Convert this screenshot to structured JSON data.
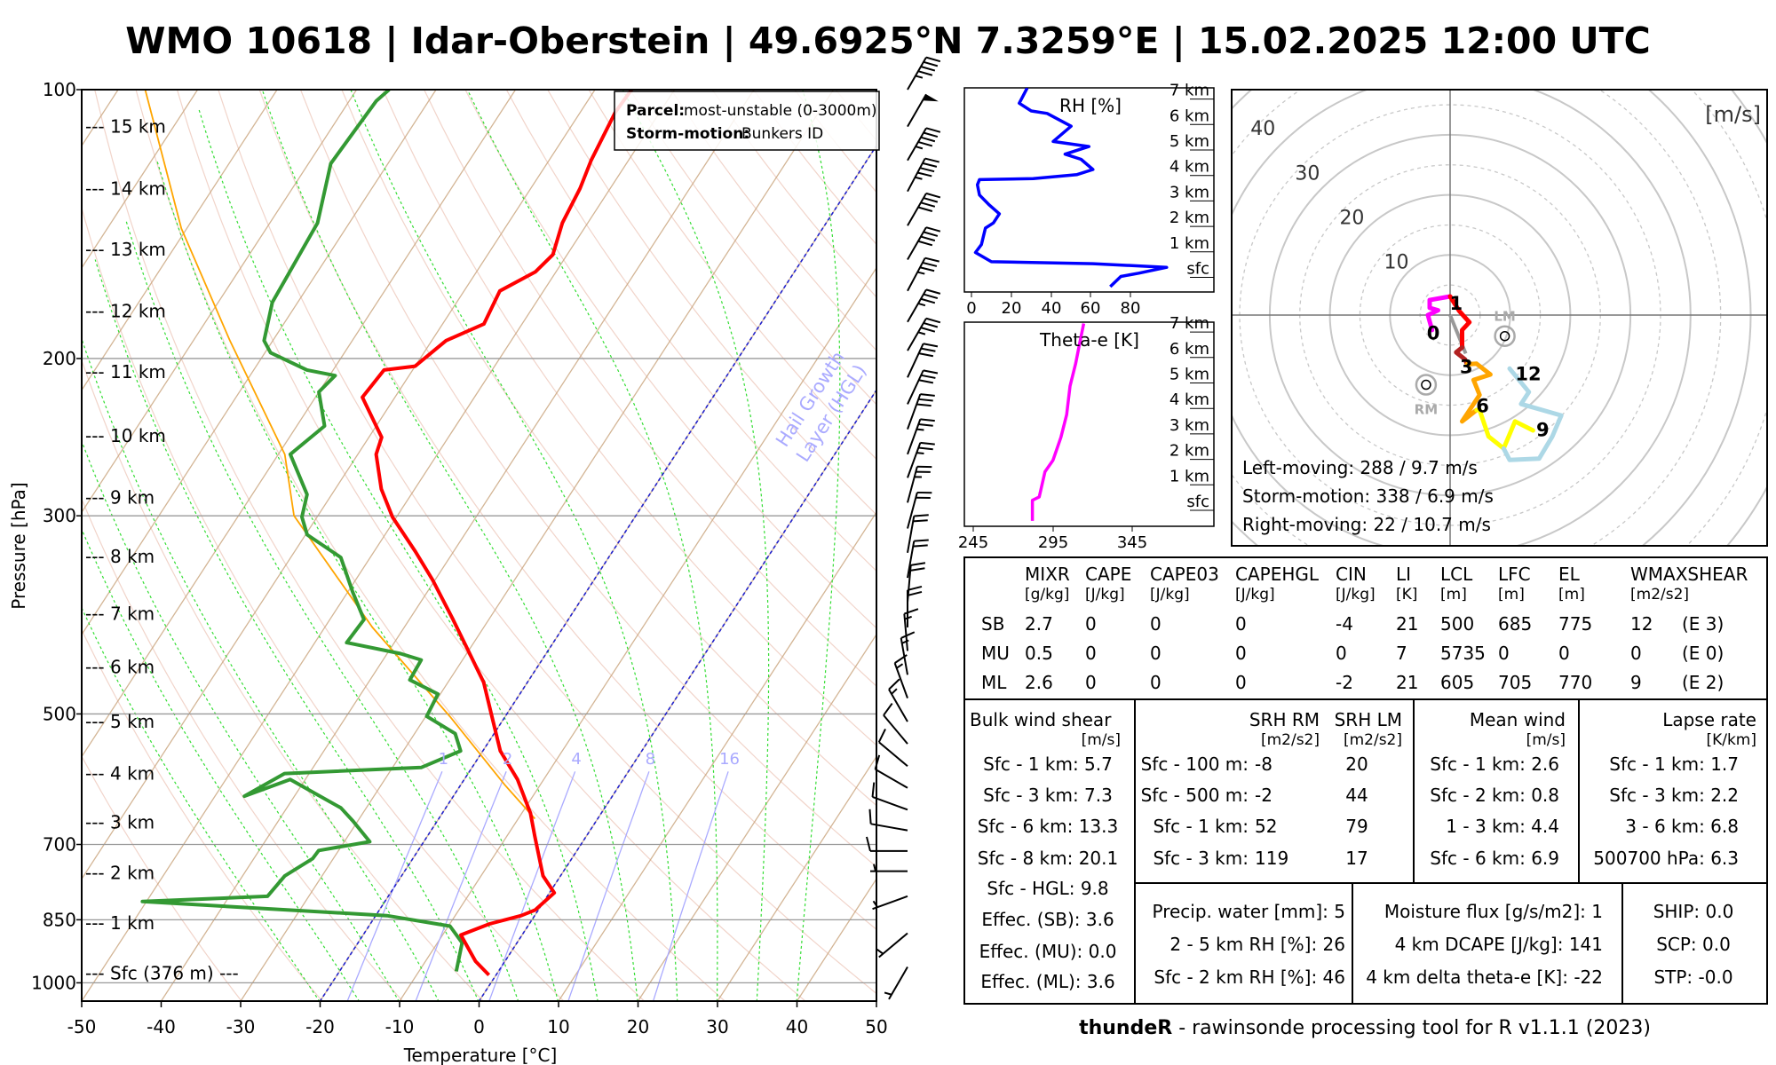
{
  "title": "WMO 10618 | Idar-Oberstein | 49.6925°N 7.3259°E | 15.02.2025 12:00 UTC",
  "colors": {
    "temperature": "#ff0000",
    "dewpoint": "#339933",
    "parcel": "#ffa500",
    "hgl": "#2222cc",
    "rh": "#0000ff",
    "theta_e": "#ff00ff",
    "isotherm": "#c8a27a",
    "dry_adiabat": "#e7b7a6",
    "moist_adiabat": "#33dd33",
    "mixing_ratio": "#aaaaff"
  },
  "skewt_legend": {
    "parcel_label": "Parcel:",
    "parcel_value": "most-unstable (0-3000m)",
    "storm_label": "Storm-motion:",
    "storm_value": "Bunkers ID"
  },
  "chart_data": [
    {
      "type": "line",
      "name": "skew-t",
      "xlabel": "Temperature [°C]",
      "ylabel": "Pressure [hPa]",
      "xlim": [
        -50,
        50
      ],
      "ylim": [
        1048,
        100
      ],
      "x_ticks": [
        "-50",
        "-40",
        "-30",
        "-20",
        "-10",
        "0",
        "10",
        "20",
        "30",
        "40",
        "50"
      ],
      "y_ticks": [
        {
          "p": 100,
          "label": "100"
        },
        {
          "p": 200,
          "label": "200"
        },
        {
          "p": 300,
          "label": "300"
        },
        {
          "p": 500,
          "label": "500"
        },
        {
          "p": 700,
          "label": "700"
        },
        {
          "p": 850,
          "label": "850"
        },
        {
          "p": 1000,
          "label": "1000"
        }
      ],
      "height_labels": [
        {
          "p": 110,
          "label": "--- 15 km"
        },
        {
          "p": 129,
          "label": "--- 14 km"
        },
        {
          "p": 151,
          "label": "--- 13 km"
        },
        {
          "p": 177,
          "label": "--- 12 km"
        },
        {
          "p": 207,
          "label": "--- 11 km"
        },
        {
          "p": 244,
          "label": "--- 10 km"
        },
        {
          "p": 286,
          "label": "--- 9 km"
        },
        {
          "p": 333,
          "label": "--- 8 km"
        },
        {
          "p": 386,
          "label": "--- 7 km"
        },
        {
          "p": 443,
          "label": "--- 6 km"
        },
        {
          "p": 510,
          "label": "--- 5 km"
        },
        {
          "p": 583,
          "label": "--- 4 km"
        },
        {
          "p": 661,
          "label": "--- 3 km"
        },
        {
          "p": 753,
          "label": "--- 2 km"
        },
        {
          "p": 857,
          "label": "--- 1 km"
        },
        {
          "p": 975,
          "label": "--- Sfc (376 m) ---"
        }
      ],
      "mixing_ratio_labels": [
        "1",
        "2",
        "4",
        "8",
        "16"
      ],
      "mixing_ratio_values": [
        1,
        2,
        4,
        8,
        16
      ],
      "hgl_isotherms": [
        0,
        -20
      ],
      "hgl_label": [
        "Hail Growth",
        "Layer (HGL)"
      ],
      "temperature": [
        [
          980,
          -0.9
        ],
        [
          946,
          -3.7
        ],
        [
          884,
          -7.7
        ],
        [
          859,
          -5.0
        ],
        [
          841,
          -1.7
        ],
        [
          829,
          -0.4
        ],
        [
          793,
          0.6
        ],
        [
          759,
          -2.2
        ],
        [
          685,
          -6.5
        ],
        [
          646,
          -8.9
        ],
        [
          592,
          -13.3
        ],
        [
          550,
          -17.8
        ],
        [
          503,
          -21.7
        ],
        [
          461,
          -25.5
        ],
        [
          422,
          -30.4
        ],
        [
          392,
          -34.5
        ],
        [
          354,
          -40.3
        ],
        [
          329,
          -44.8
        ],
        [
          301,
          -50.5
        ],
        [
          280,
          -54.2
        ],
        [
          256,
          -57.7
        ],
        [
          245,
          -58.4
        ],
        [
          221,
          -64.1
        ],
        [
          206,
          -63.6
        ],
        [
          204,
          -60.0
        ],
        [
          191,
          -58.2
        ],
        [
          183,
          -54.8
        ],
        [
          168,
          -55.5
        ],
        [
          160,
          -52.6
        ],
        [
          153,
          -51.8
        ],
        [
          141,
          -53.2
        ],
        [
          129,
          -53.8
        ],
        [
          120,
          -54.7
        ],
        [
          106,
          -55.6
        ],
        [
          100,
          -55.4
        ]
      ],
      "dewpoint": [
        [
          971,
          -5.3
        ],
        [
          902,
          -6.9
        ],
        [
          864,
          -9.8
        ],
        [
          841,
          -18.6
        ],
        [
          811,
          -50.5
        ],
        [
          800,
          -35.2
        ],
        [
          759,
          -34.7
        ],
        [
          726,
          -32.6
        ],
        [
          711,
          -32.5
        ],
        [
          695,
          -26.8
        ],
        [
          659,
          -30.6
        ],
        [
          637,
          -33.2
        ],
        [
          592,
          -41.9
        ],
        [
          618,
          -46.3
        ],
        [
          583,
          -43.1
        ],
        [
          574,
          -26.4
        ],
        [
          550,
          -22.8
        ],
        [
          526,
          -24.9
        ],
        [
          503,
          -29.9
        ],
        [
          475,
          -30.3
        ],
        [
          458,
          -35.0
        ],
        [
          435,
          -35.2
        ],
        [
          428,
          -38.3
        ],
        [
          416,
          -46.0
        ],
        [
          392,
          -45.7
        ],
        [
          365,
          -49.4
        ],
        [
          334,
          -53.7
        ],
        [
          315,
          -59.8
        ],
        [
          301,
          -61.9
        ],
        [
          284,
          -63.1
        ],
        [
          256,
          -68.5
        ],
        [
          238,
          -66.5
        ],
        [
          218,
          -70.0
        ],
        [
          209,
          -69.3
        ],
        [
          206,
          -73.3
        ],
        [
          197,
          -79.3
        ],
        [
          191,
          -81.1
        ],
        [
          173,
          -83.2
        ],
        [
          141,
          -84.0
        ],
        [
          121,
          -87.2
        ],
        [
          103,
          -86.6
        ],
        [
          100,
          -85.9
        ]
      ],
      "parcel": [
        [
          655,
          -7.9
        ],
        [
          600,
          -14.5
        ],
        [
          503,
          -27.0
        ],
        [
          400,
          -44.0
        ],
        [
          300,
          -63.0
        ],
        [
          256,
          -69.2
        ],
        [
          191,
          -85.4
        ],
        [
          143,
          -100.7
        ],
        [
          100,
          -116.6
        ]
      ],
      "wind_barbs": [
        [
          100,
          30,
          45
        ],
        [
          110,
          30,
          50
        ],
        [
          120,
          30,
          45
        ],
        [
          130,
          28,
          45
        ],
        [
          142,
          30,
          40
        ],
        [
          155,
          30,
          40
        ],
        [
          168,
          28,
          35
        ],
        [
          182,
          30,
          35
        ],
        [
          196,
          30,
          35
        ],
        [
          210,
          25,
          30
        ],
        [
          225,
          25,
          30
        ],
        [
          240,
          20,
          30
        ],
        [
          256,
          20,
          25
        ],
        [
          272,
          20,
          25
        ],
        [
          290,
          15,
          25
        ],
        [
          310,
          15,
          20
        ],
        [
          330,
          10,
          20
        ],
        [
          352,
          10,
          20
        ],
        [
          375,
          5,
          20
        ],
        [
          400,
          0,
          20
        ],
        [
          425,
          355,
          15
        ],
        [
          452,
          350,
          15
        ],
        [
          480,
          340,
          15
        ],
        [
          510,
          330,
          15
        ],
        [
          540,
          320,
          10
        ],
        [
          572,
          310,
          10
        ],
        [
          605,
          300,
          10
        ],
        [
          640,
          290,
          10
        ],
        [
          675,
          280,
          10
        ],
        [
          712,
          270,
          10
        ],
        [
          750,
          270,
          5
        ],
        [
          800,
          250,
          5
        ],
        [
          880,
          230,
          5
        ],
        [
          960,
          210,
          5
        ]
      ]
    },
    {
      "type": "line",
      "name": "relative-humidity",
      "title": "RH [%]",
      "x_ticks": [
        "0",
        "20",
        "40",
        "60",
        "80"
      ],
      "height_labels": [
        "7 km",
        "6 km",
        "5 km",
        "4 km",
        "3 km",
        "2 km",
        "1 km",
        "sfc"
      ],
      "points": [
        [
          69.7,
          -0.4
        ],
        [
          75,
          0
        ],
        [
          84,
          0.13
        ],
        [
          98,
          0.36
        ],
        [
          61,
          0.5
        ],
        [
          10,
          0.58
        ],
        [
          2,
          0.94
        ],
        [
          5,
          1.25
        ],
        [
          7,
          1.9
        ],
        [
          11,
          2.1
        ],
        [
          14,
          2.46
        ],
        [
          9,
          2.8
        ],
        [
          4,
          3.2
        ],
        [
          3,
          3.6
        ],
        [
          4,
          3.8
        ],
        [
          31,
          3.84
        ],
        [
          53,
          4.0
        ],
        [
          61,
          4.2
        ],
        [
          55,
          4.6
        ],
        [
          47,
          4.8
        ],
        [
          59,
          5.1
        ],
        [
          41,
          5.3
        ],
        [
          50,
          5.9
        ],
        [
          38,
          6.4
        ],
        [
          30,
          6.5
        ],
        [
          24,
          6.8
        ],
        [
          28,
          7.4
        ]
      ]
    },
    {
      "type": "line",
      "name": "theta-e",
      "title": "Theta-e [K]",
      "x_ticks": [
        "245",
        "295",
        "345"
      ],
      "height_labels": [
        "7 km",
        "6 km",
        "5 km",
        "4 km",
        "3 km",
        "2 km",
        "1 km",
        "sfc"
      ],
      "points": [
        [
          282.1,
          -0.45
        ],
        [
          282.1,
          0.36
        ],
        [
          286.4,
          0.49
        ],
        [
          290,
          1.48
        ],
        [
          295,
          1.93
        ],
        [
          300,
          2.83
        ],
        [
          303.6,
          3.72
        ],
        [
          305.7,
          4.84
        ],
        [
          309.3,
          5.74
        ],
        [
          311.4,
          6.41
        ],
        [
          314.3,
          7.3
        ]
      ]
    },
    {
      "type": "line",
      "name": "hodograph",
      "unit_label": "[m/s]",
      "ring_labels": [
        "10",
        "20",
        "30",
        "40"
      ],
      "segments": [
        {
          "color": "#ff00ff",
          "points": [
            [
              -3,
              -2.5
            ],
            [
              -3.7,
              0
            ],
            [
              -2,
              0.8
            ],
            [
              -3.4,
              1.2
            ],
            [
              -3.4,
              2.5
            ],
            [
              0,
              3.1
            ]
          ]
        },
        {
          "color": "#ff0000",
          "points": [
            [
              0,
              3.1
            ],
            [
              1.5,
              0.7
            ],
            [
              3.2,
              -1.2
            ],
            [
              2,
              -2.5
            ],
            [
              2,
              -5.4
            ]
          ]
        },
        {
          "color": "#b22222",
          "points": [
            [
              2,
              -5.4
            ],
            [
              1,
              -6.2
            ],
            [
              2.5,
              -7.4
            ],
            [
              2.8,
              -8.2
            ]
          ]
        },
        {
          "color": "#ffa500",
          "points": [
            [
              2.8,
              -8.2
            ],
            [
              4.4,
              -8.1
            ],
            [
              6.7,
              -9.9
            ],
            [
              3.9,
              -10.8
            ],
            [
              4.9,
              -13.3
            ],
            [
              2,
              -17.7
            ],
            [
              4.4,
              -15.8
            ]
          ]
        },
        {
          "color": "#ffff00",
          "points": [
            [
              4.4,
              -15.8
            ],
            [
              4.9,
              -15.8
            ],
            [
              6.4,
              -20.2
            ],
            [
              8.9,
              -22.2
            ],
            [
              10.8,
              -17.7
            ],
            [
              13.8,
              -19.2
            ]
          ]
        },
        {
          "color": "#add8e6",
          "points": [
            [
              8.9,
              -22.2
            ],
            [
              9.9,
              -24.1
            ],
            [
              14.8,
              -23.9
            ],
            [
              17,
              -20.2
            ],
            [
              18.5,
              -16.7
            ],
            [
              11.8,
              -14.8
            ],
            [
              13.1,
              -12.8
            ],
            [
              9.9,
              -8.9
            ]
          ]
        }
      ],
      "height_marks": [
        {
          "label": "0",
          "u": -2.8,
          "v": -2.9
        },
        {
          "label": "1",
          "u": 1.0,
          "v": 2.1
        },
        {
          "label": "3",
          "u": 2.7,
          "v": -8.5
        },
        {
          "label": "6",
          "u": 5.4,
          "v": -15.0
        },
        {
          "label": "9",
          "u": 15.4,
          "v": -19.0
        },
        {
          "label": "12",
          "u": 13.0,
          "v": -9.7
        }
      ],
      "storm_markers": [
        {
          "label": "LM",
          "u": 9.1,
          "v": -3.5
        },
        {
          "label": "RM",
          "u": -4.0,
          "v": -11.6
        }
      ],
      "storm_motion_vector": [
        2.6,
        -6.4
      ],
      "info": [
        "Left-moving: 288 / 9.7 m/s",
        "Storm-motion: 338 / 6.9 m/s",
        "Right-moving: 22 / 10.7 m/s"
      ]
    }
  ],
  "table": {
    "headers": [
      "MIXR",
      "CAPE",
      "CAPE03",
      "CAPEHGL",
      "CIN",
      "LI",
      "LCL",
      "LFC",
      "EL",
      "WMAXSHEAR"
    ],
    "units": [
      "[g/kg]",
      "[J/kg]",
      "[J/kg]",
      "[J/kg]",
      "[J/kg]",
      "[K]",
      "[m]",
      "[m]",
      "[m]",
      "[m2/s2]"
    ],
    "rows": [
      {
        "label": "SB",
        "values": [
          "2.7",
          "0",
          "0",
          "0",
          "-4",
          "21",
          "500",
          "685",
          "775",
          "12",
          "(E 3)"
        ]
      },
      {
        "label": "MU",
        "values": [
          "0.5",
          "0",
          "0",
          "0",
          "0",
          "7",
          "5735",
          "0",
          "0",
          "0",
          "(E 0)"
        ]
      },
      {
        "label": "ML",
        "values": [
          "2.6",
          "0",
          "0",
          "0",
          "-2",
          "21",
          "605",
          "705",
          "770",
          "9",
          "(E 2)"
        ]
      }
    ]
  },
  "bulk": {
    "title": "Bulk wind shear",
    "unit": "[m/s]",
    "rows": [
      "Sfc - 1 km: 5.7",
      "Sfc - 3 km: 7.3",
      "Sfc - 6 km: 13.3",
      "Sfc - 8 km: 20.1",
      "Sfc - HGL: 9.8",
      "Effec. (SB): 3.6",
      "Effec. (MU): 0.0",
      "Effec. (ML): 3.6"
    ]
  },
  "srh": {
    "rm_title": "SRH RM",
    "lm_title": "SRH LM",
    "rm_unit": "[m2/s2]",
    "lm_unit": "[m2/s2]",
    "rows": [
      {
        "label": "Sfc - 100 m:",
        "rm": "-8",
        "lm": "20"
      },
      {
        "label": "Sfc - 500 m:",
        "rm": "-2",
        "lm": "44"
      },
      {
        "label": "Sfc - 1 km:",
        "rm": "52",
        "lm": "79"
      },
      {
        "label": "Sfc - 3 km:",
        "rm": "119",
        "lm": "17"
      }
    ]
  },
  "mean_wind": {
    "title": "Mean wind",
    "unit": "[m/s]",
    "rows": [
      "Sfc - 1 km: 2.6",
      "Sfc - 2 km: 0.8",
      "1 - 3 km: 4.4",
      "Sfc - 6 km: 6.9"
    ]
  },
  "lapse": {
    "title": "Lapse rate",
    "unit": "[K/km]",
    "rows": [
      "Sfc - 1 km: 1.7",
      "Sfc - 3 km: 2.2",
      "3 - 6 km: 6.8",
      "500700 hPa: 6.3"
    ]
  },
  "moisture": [
    "Precip. water [mm]: 5",
    "2 - 5 km RH [%]: 26",
    "Sfc - 2 km RH [%]: 46"
  ],
  "flux": [
    "Moisture flux [g/s/m2]: 1",
    "4 km DCAPE [J/kg]: 141",
    "4 km delta theta-e [K]: -22"
  ],
  "indices": [
    "SHIP: 0.0",
    "SCP: 0.0",
    "STP: -0.0"
  ],
  "footer": {
    "brand": "thundeR",
    "text": " - rawinsonde processing tool for R v1.1.1 (2023)"
  }
}
